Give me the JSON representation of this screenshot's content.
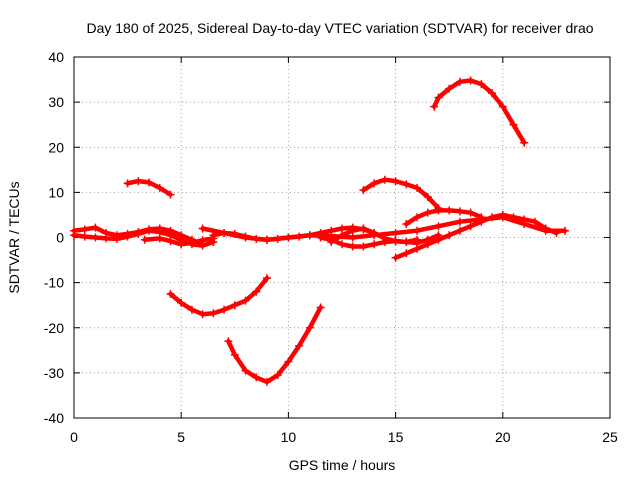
{
  "chart_data": {
    "type": "line",
    "title": "Day 180 of 2025, Sidereal Day-to-day VTEC variation (SDTVAR) for receiver drao",
    "xlabel": "GPS time / hours",
    "ylabel": "SDTVAR / TECUs",
    "xlim": [
      0,
      25
    ],
    "ylim": [
      -40,
      40
    ],
    "x_ticks": [
      0,
      5,
      10,
      15,
      20,
      25
    ],
    "y_ticks": [
      -40,
      -30,
      -20,
      -10,
      0,
      10,
      20,
      30,
      40
    ],
    "grid": true,
    "series_color": "#ff0000",
    "series": [
      {
        "name": "arc-1",
        "x": [
          0,
          0.5,
          1.0,
          1.5,
          2.0,
          2.5,
          3.0,
          3.5,
          4.0,
          4.5,
          5.0,
          5.5,
          6.0
        ],
        "y": [
          1.5,
          1.8,
          2.2,
          1.0,
          0.5,
          0.8,
          1.2,
          1.8,
          2.0,
          1.5,
          0.5,
          -0.5,
          -1.5
        ]
      },
      {
        "name": "arc-2",
        "x": [
          0,
          0.5,
          1.0,
          1.5,
          2.0,
          2.5,
          3.0,
          3.5,
          4.0,
          4.5,
          5.0,
          5.5,
          6.0,
          6.5
        ],
        "y": [
          0.5,
          0.2,
          0.0,
          -0.2,
          -0.3,
          0.2,
          0.8,
          1.5,
          1.2,
          0.5,
          -0.5,
          -1.5,
          -1.8,
          -1.0
        ]
      },
      {
        "name": "arc-3",
        "x": [
          2.5,
          3.0,
          3.5,
          4.0,
          4.5
        ],
        "y": [
          12.0,
          12.5,
          12.2,
          11.0,
          9.5
        ]
      },
      {
        "name": "arc-4",
        "x": [
          3.3,
          4.0,
          4.5,
          5.0,
          5.5,
          6.0,
          6.5
        ],
        "y": [
          -0.5,
          -0.2,
          -0.8,
          -1.5,
          -1.2,
          -0.6,
          -0.2
        ]
      },
      {
        "name": "arc-5",
        "x": [
          4.5,
          5.0,
          5.5,
          6.0,
          6.5,
          7.0,
          7.5,
          8.0,
          8.5,
          9.0
        ],
        "y": [
          -12.5,
          -14.5,
          -16.0,
          -17.0,
          -16.8,
          -16.0,
          -15.0,
          -14.0,
          -12.0,
          -9.0
        ]
      },
      {
        "name": "arc-6",
        "x": [
          6.0,
          7.0,
          8.0,
          9.0,
          10.0,
          11.0,
          12.0,
          13.0,
          14.0,
          15.0,
          16.0,
          17.0,
          18.0,
          19.0,
          20.0,
          21.0,
          22.0,
          22.9
        ],
        "y": [
          2.0,
          1.0,
          0.0,
          -0.5,
          0.0,
          0.5,
          0.3,
          0.0,
          0.5,
          1.0,
          1.5,
          2.5,
          3.5,
          4.0,
          4.5,
          3.0,
          1.5,
          1.5
        ]
      },
      {
        "name": "arc-7",
        "x": [
          6.5,
          7.0,
          7.5,
          8.0,
          8.5,
          9.0,
          9.5,
          10.0,
          10.5,
          11.0,
          11.5,
          12.0,
          12.5,
          13.0,
          13.5,
          14.0
        ],
        "y": [
          0.5,
          1.0,
          0.8,
          0.2,
          -0.3,
          -0.5,
          -0.3,
          0.0,
          0.2,
          0.5,
          1.0,
          1.5,
          2.0,
          2.2,
          1.8,
          1.0
        ]
      },
      {
        "name": "arc-8",
        "x": [
          7.2,
          7.5,
          8.0,
          8.5,
          9.0,
          9.5,
          10.0,
          10.5,
          11.0,
          11.5
        ],
        "y": [
          -23.0,
          -26.0,
          -29.5,
          -31.0,
          -32.0,
          -30.5,
          -27.5,
          -24.0,
          -20.0,
          -15.5
        ]
      },
      {
        "name": "arc-9",
        "x": [
          11.5,
          12.0,
          12.5,
          13.0,
          13.5,
          14.0,
          14.5,
          15.0,
          15.5,
          16.0,
          16.5,
          17.0
        ],
        "y": [
          0.0,
          -0.5,
          -1.5,
          -2.0,
          -2.0,
          -1.5,
          -1.0,
          -0.8,
          -1.0,
          -1.2,
          -0.5,
          0.5
        ]
      },
      {
        "name": "arc-10",
        "x": [
          12.0,
          12.5,
          13.0,
          13.5,
          14.0,
          14.5,
          15.0,
          15.5,
          16.0
        ],
        "y": [
          -1.0,
          0.5,
          1.5,
          2.0,
          1.0,
          -0.2,
          -0.8,
          -1.0,
          -0.5
        ]
      },
      {
        "name": "arc-11",
        "x": [
          13.5,
          14.0,
          14.5,
          15.0,
          15.5,
          16.0,
          16.5,
          17.0
        ],
        "y": [
          10.5,
          12.0,
          12.8,
          12.5,
          11.8,
          11.0,
          9.0,
          6.5
        ]
      },
      {
        "name": "arc-12",
        "x": [
          15.0,
          15.5,
          16.0,
          16.5,
          17.0,
          17.5,
          18.0,
          18.5,
          19.0,
          19.5,
          20.0,
          20.5,
          21.0,
          21.5,
          22.0,
          22.5
        ],
        "y": [
          -4.5,
          -3.5,
          -2.5,
          -1.5,
          -0.5,
          0.5,
          1.5,
          2.5,
          3.5,
          4.5,
          5.0,
          4.5,
          4.0,
          3.5,
          2.0,
          1.0
        ]
      },
      {
        "name": "arc-13",
        "x": [
          15.5,
          16.0,
          16.5,
          17.0,
          17.5,
          18.0,
          18.5,
          19.0
        ],
        "y": [
          3.0,
          4.5,
          5.5,
          6.0,
          6.0,
          5.8,
          5.5,
          4.5
        ]
      },
      {
        "name": "arc-14",
        "x": [
          16.8,
          17.0,
          17.5,
          18.0,
          18.5,
          19.0,
          19.5,
          20.0,
          20.5,
          21.0
        ],
        "y": [
          29.0,
          31.0,
          33.0,
          34.5,
          34.8,
          34.0,
          32.0,
          29.0,
          25.0,
          21.0
        ]
      }
    ]
  }
}
